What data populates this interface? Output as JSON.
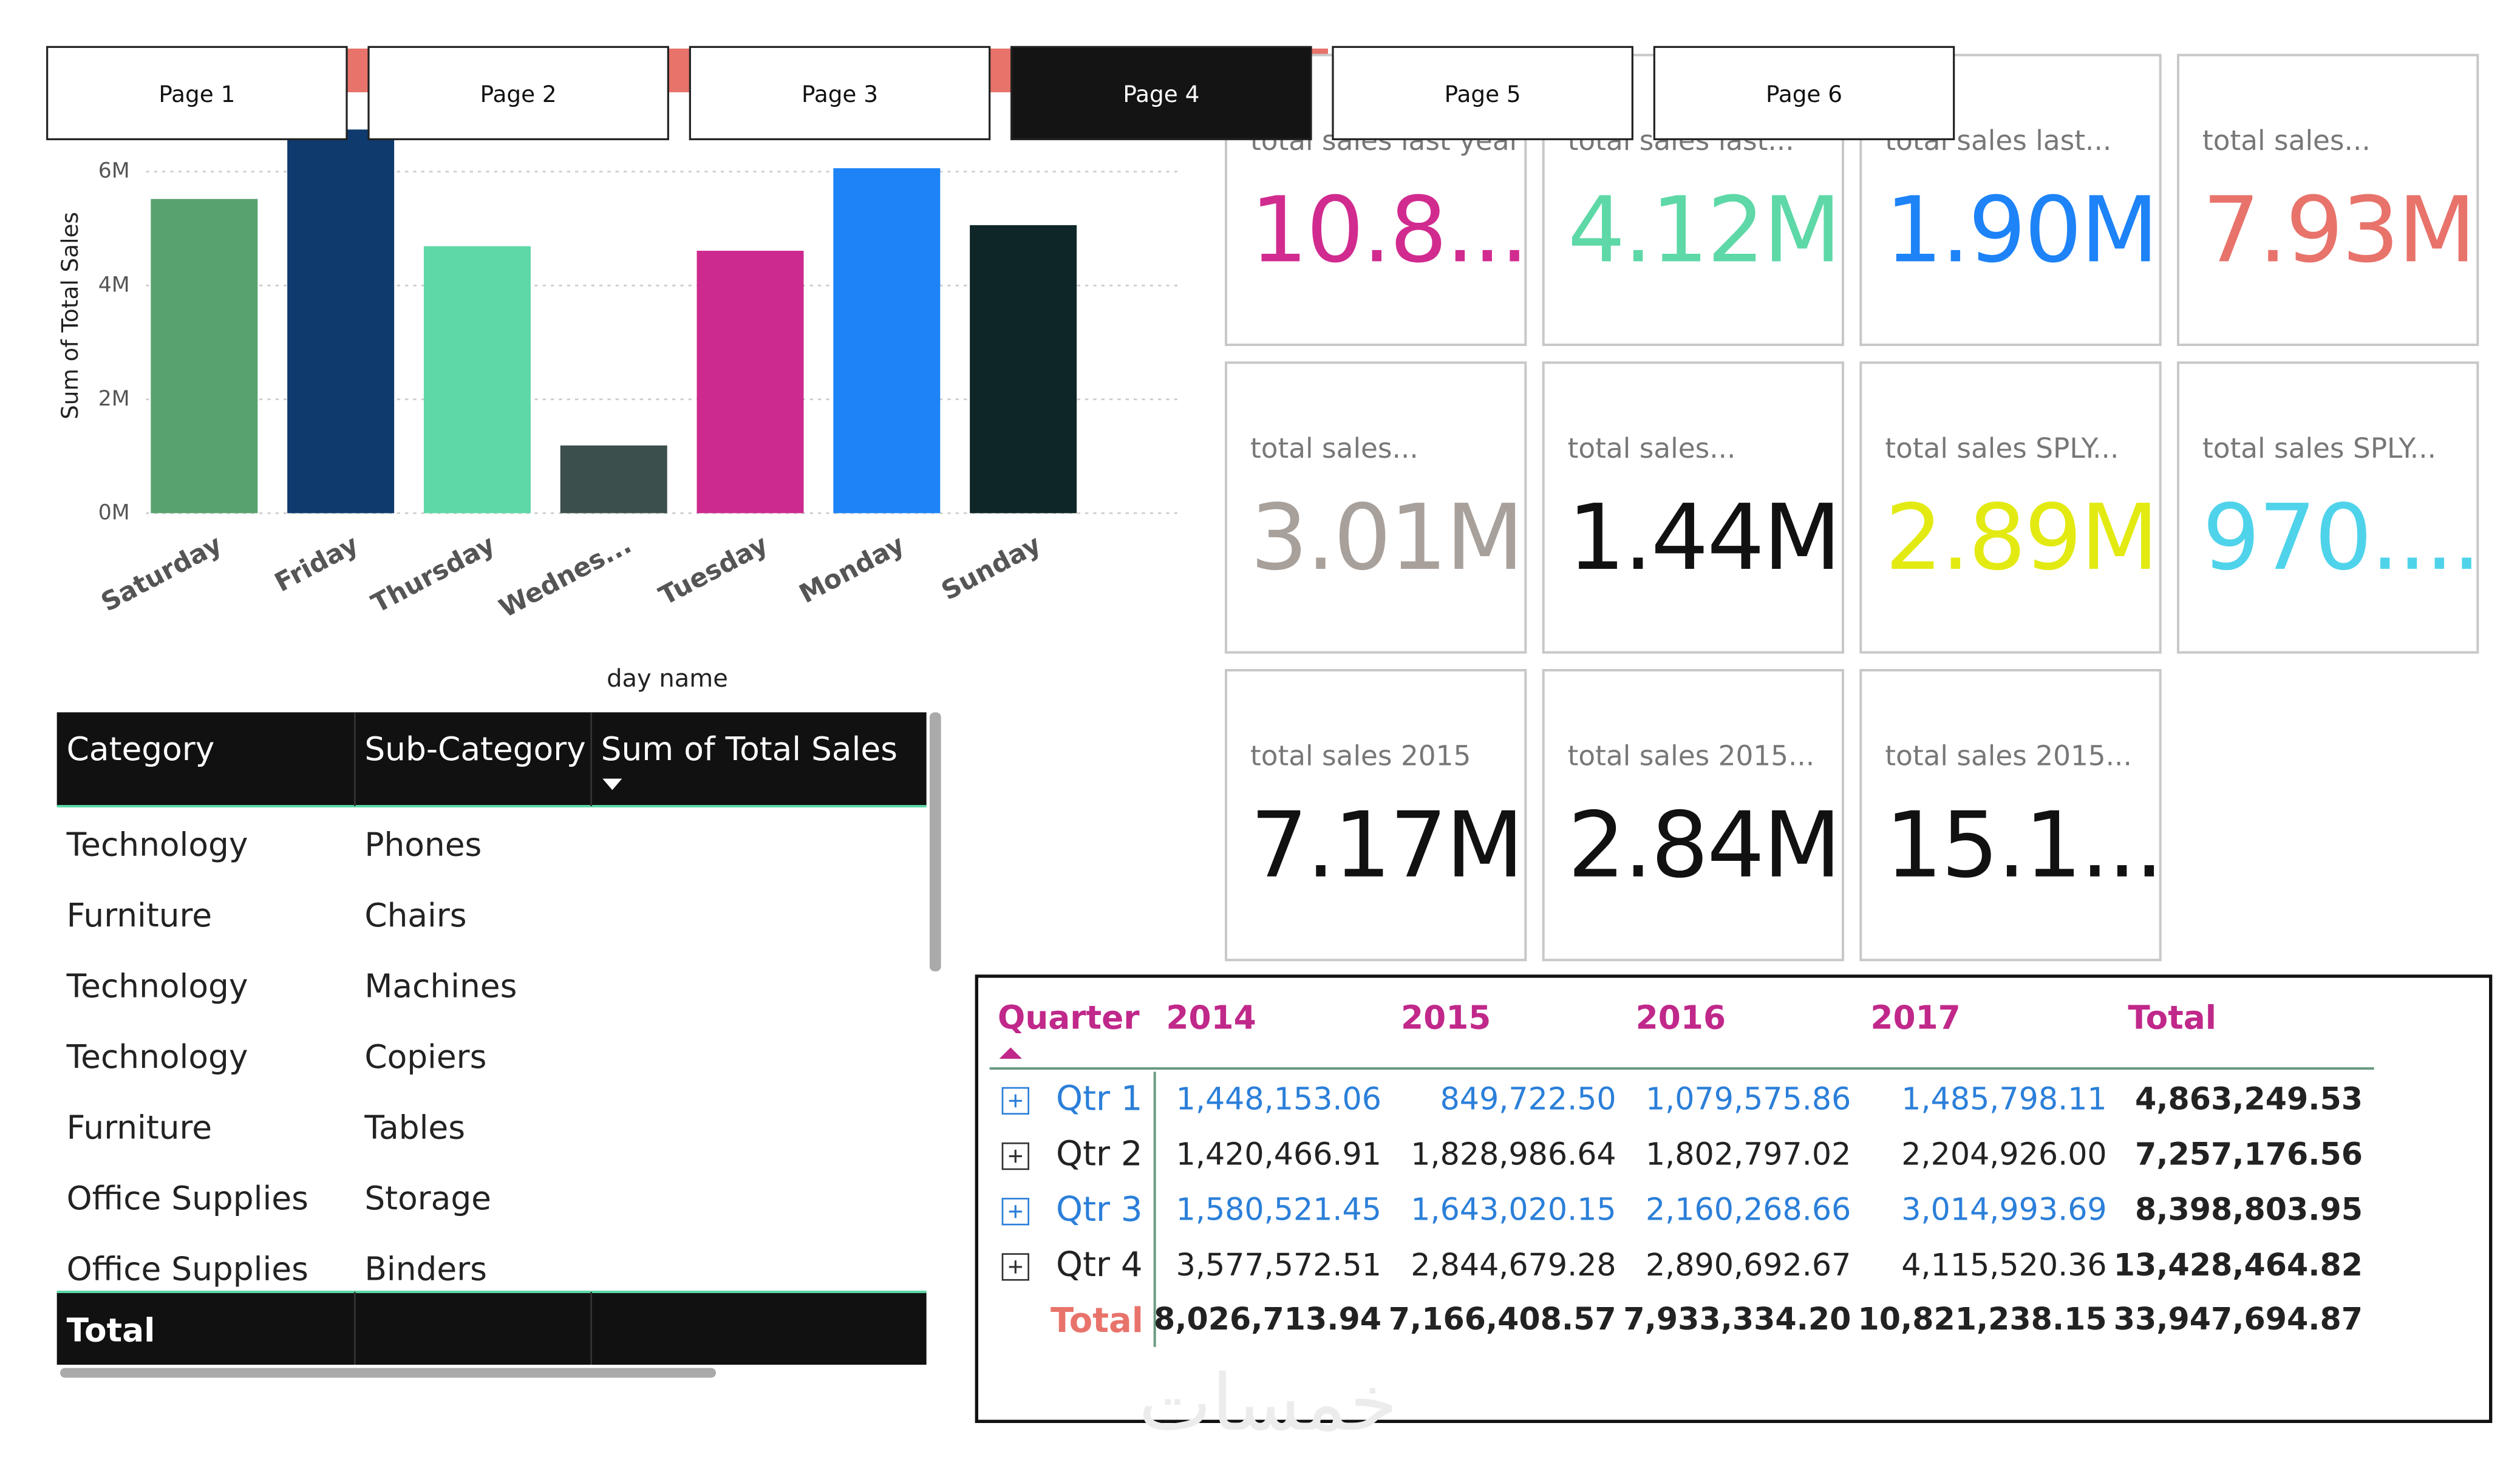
{
  "chart_data": {
    "type": "bar",
    "x_label": "day name",
    "y_label": "Sum of Total Sales",
    "categories": [
      "Saturday",
      "Friday",
      "Thursday",
      "Wednes...",
      "Tuesday",
      "Monday",
      "Sunday"
    ],
    "values": [
      5520000,
      6740000,
      4690000,
      1190000,
      4610000,
      6060000,
      5060000
    ],
    "colors": [
      "#58a26f",
      "#0e3a6e",
      "#5dd8a6",
      "#3b4f4d",
      "#cc2a8f",
      "#1d83f7",
      "#0e2627"
    ],
    "ylim": [
      0,
      6740000
    ],
    "yticks": [
      {
        "value": 0,
        "label": "0M"
      },
      {
        "value": 2000000,
        "label": "2M"
      },
      {
        "value": 4000000,
        "label": "4M"
      },
      {
        "value": 6000000,
        "label": "6M"
      }
    ],
    "grid": true
  },
  "tabs": {
    "items": [
      "Page 1",
      "Page 2",
      "Page 3",
      "Page 4",
      "Page 5",
      "Page 6"
    ],
    "active": 3
  },
  "cards": [
    {
      "label": "total sales last year",
      "value": "10.8...",
      "color": "#d12b8f"
    },
    {
      "label": "total sales last...",
      "value": "4.12M",
      "color": "#5dd8a6"
    },
    {
      "label": "total sales last...",
      "value": "1.90M",
      "color": "#1d83f7"
    },
    {
      "label": "total sales...",
      "value": "7.93M",
      "color": "#e8736b"
    },
    {
      "label": "total sales...",
      "value": "3.01M",
      "color": "#a8a09a"
    },
    {
      "label": "total sales...",
      "value": "1.44M",
      "color": "#111111"
    },
    {
      "label": "total sales SPLY...",
      "value": "2.89M",
      "color": "#e3ea12"
    },
    {
      "label": "total sales SPLY...",
      "value": "970....",
      "color": "#4fd3ea"
    },
    {
      "label": "total sales 2015",
      "value": "7.17M",
      "color": "#111111"
    },
    {
      "label": "total sales 2015...",
      "value": "2.84M",
      "color": "#111111"
    },
    {
      "label": "total sales 2015...",
      "value": "15.1...",
      "color": "#111111"
    }
  ],
  "table": {
    "headers": [
      "Category",
      "Sub-Category",
      "Sum of Total Sales"
    ],
    "rows": [
      [
        "Technology",
        "Phones"
      ],
      [
        "Furniture",
        "Chairs"
      ],
      [
        "Technology",
        "Machines"
      ],
      [
        "Technology",
        "Copiers"
      ],
      [
        "Furniture",
        "Tables"
      ],
      [
        "Office Supplies",
        "Storage"
      ],
      [
        "Office Supplies",
        "Binders"
      ]
    ],
    "total": "Total"
  },
  "matrix": {
    "headers": [
      "Quarter",
      "2014",
      "2015",
      "2016",
      "2017",
      "Total"
    ],
    "rows": [
      [
        "Qtr 1",
        "1,448,153.06",
        "849,722.50",
        "1,079,575.86",
        "1,485,798.11",
        "4,863,249.53"
      ],
      [
        "Qtr 2",
        "1,420,466.91",
        "1,828,986.64",
        "1,802,797.02",
        "2,204,926.00",
        "7,257,176.56"
      ],
      [
        "Qtr 3",
        "1,580,521.45",
        "1,643,020.15",
        "2,160,268.66",
        "3,014,993.69",
        "8,398,803.95"
      ],
      [
        "Qtr 4",
        "3,577,572.51",
        "2,844,679.28",
        "2,890,692.67",
        "4,115,520.36",
        "13,428,464.82"
      ]
    ],
    "total": [
      "Total",
      "8,026,713.94",
      "7,166,408.57",
      "7,933,334.20",
      "10,821,238.15",
      "33,947,694.87"
    ]
  },
  "watermark": "خمسات"
}
